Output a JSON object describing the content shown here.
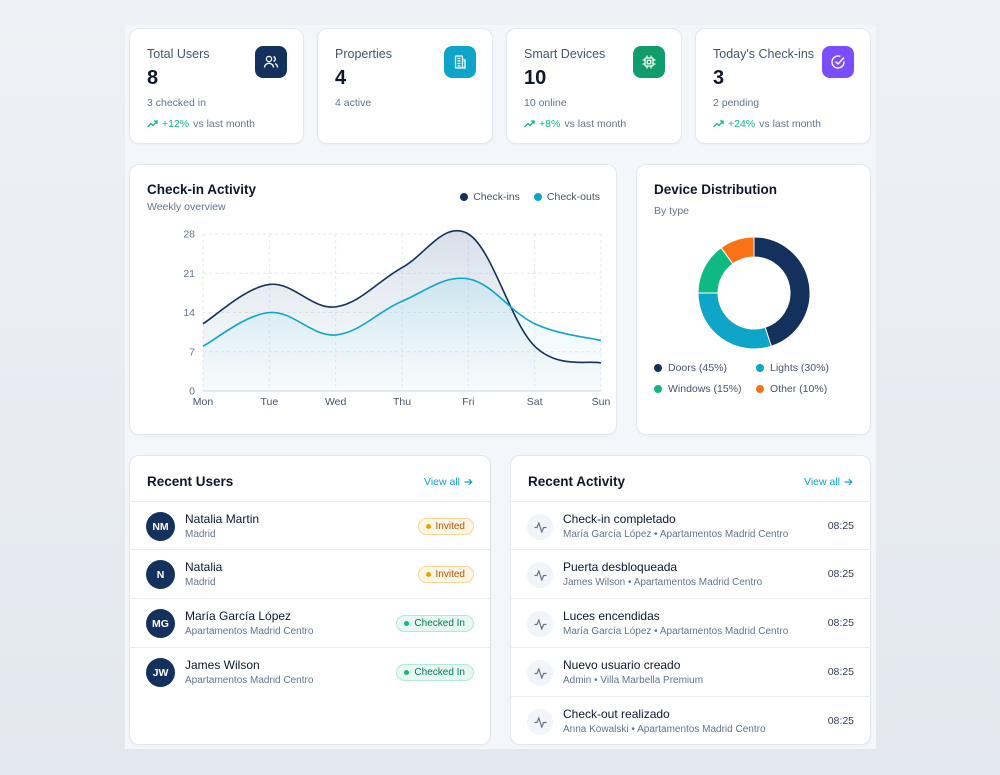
{
  "stats": [
    {
      "title": "Total Users",
      "value": "8",
      "sub": "3 checked in",
      "trend": "+12%",
      "trend_suffix": "vs last month",
      "icon": "users-icon",
      "color": "#13315c"
    },
    {
      "title": "Properties",
      "value": "4",
      "sub": "4 active",
      "icon": "building-icon",
      "color": "#0ea5c9"
    },
    {
      "title": "Smart Devices",
      "value": "10",
      "sub": "10 online",
      "trend": "+8%",
      "trend_suffix": "vs last month",
      "icon": "chip-icon",
      "color": "#0f9d6b"
    },
    {
      "title": "Today's Check-ins",
      "value": "3",
      "sub": "2 pending",
      "trend": "+24%",
      "trend_suffix": "vs last month",
      "icon": "check-circle-icon",
      "color": "#7c4dff"
    }
  ],
  "activity_chart": {
    "title": "Check-in Activity",
    "subtitle": "Weekly overview",
    "chart_data": {
      "type": "area",
      "categories": [
        "Mon",
        "Tue",
        "Wed",
        "Thu",
        "Fri",
        "Sat",
        "Sun"
      ],
      "series": [
        {
          "name": "Check-ins",
          "values": [
            12,
            19,
            15,
            22,
            28,
            8,
            5
          ],
          "color": "#13315c"
        },
        {
          "name": "Check-outs",
          "values": [
            8,
            14,
            10,
            16,
            20,
            12,
            9
          ],
          "color": "#0ea5c9"
        }
      ],
      "yticks": [
        0,
        7,
        14,
        21,
        28
      ],
      "ylim": [
        0,
        28
      ],
      "grid": true,
      "legend": "top-right"
    }
  },
  "device_chart": {
    "title": "Device Distribution",
    "subtitle": "By type",
    "chart_data": {
      "type": "pie",
      "donut": true,
      "slices": [
        {
          "label": "Doors (45%)",
          "value": 45,
          "color": "#13315c"
        },
        {
          "label": "Lights (30%)",
          "value": 30,
          "color": "#0ea5c9"
        },
        {
          "label": "Windows (15%)",
          "value": 15,
          "color": "#10b981"
        },
        {
          "label": "Other (10%)",
          "value": 10,
          "color": "#f97316"
        }
      ]
    }
  },
  "recent_users": {
    "title": "Recent Users",
    "view_all": "View all",
    "items": [
      {
        "initials": "NM",
        "name": "Natalia Martin",
        "location": "Madrid",
        "status": "Invited",
        "kind": "invited"
      },
      {
        "initials": "N",
        "name": "Natalia",
        "location": "Madrid",
        "status": "Invited",
        "kind": "invited"
      },
      {
        "initials": "MG",
        "name": "María García López",
        "location": "Apartamentos Madrid Centro",
        "status": "Checked In",
        "kind": "checked"
      },
      {
        "initials": "JW",
        "name": "James Wilson",
        "location": "Apartamentos Madrid Centro",
        "status": "Checked In",
        "kind": "checked"
      }
    ]
  },
  "recent_activity": {
    "title": "Recent Activity",
    "view_all": "View all",
    "items": [
      {
        "title": "Check-in completado",
        "user": "María García López",
        "place": "Apartamentos Madrid Centro",
        "time": "08:25"
      },
      {
        "title": "Puerta desbloqueada",
        "user": "James Wilson",
        "place": "Apartamentos Madrid Centro",
        "time": "08:25"
      },
      {
        "title": "Luces encendidas",
        "user": "María García López",
        "place": "Apartamentos Madrid Centro",
        "time": "08:25"
      },
      {
        "title": "Nuevo usuario creado",
        "user": "Admin",
        "place": "Villa Marbella Premium",
        "time": "08:25"
      },
      {
        "title": "Check-out realizado",
        "user": "Anna Kowalski",
        "place": "Apartamentos Madrid Centro",
        "time": "08:25"
      }
    ]
  }
}
